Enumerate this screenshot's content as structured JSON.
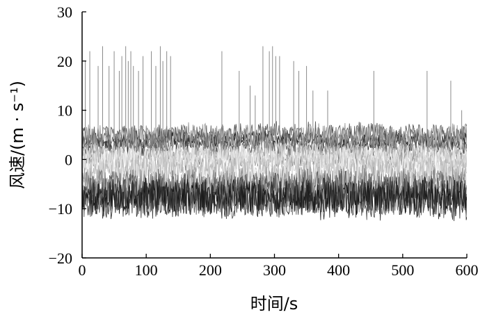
{
  "chart_data": {
    "type": "line",
    "title": "",
    "xlabel": "时间/s",
    "ylabel": "风速/(m · s⁻¹)",
    "xlim": [
      0,
      600
    ],
    "ylim": [
      -20,
      30
    ],
    "x_ticks": [
      "0",
      "100",
      "200",
      "300",
      "400",
      "500",
      "600"
    ],
    "y_ticks": [
      "30",
      "20",
      "10",
      "0",
      "−10",
      "−20"
    ],
    "grid": false,
    "legend": "none",
    "series_colors": [
      "#1a1a1a",
      "#3a3a3a",
      "#5a5a5a",
      "#7a7a7a",
      "#9a9a9a",
      "#b8b8b8",
      "#d2d2d2",
      "#e8e8e8"
    ],
    "series": [
      {
        "color_index": 0,
        "mean": 4.0,
        "noise": 1.5,
        "seed": 11
      },
      {
        "color_index": 1,
        "mean": 3.2,
        "noise": 2.0,
        "seed": 17
      },
      {
        "color_index": 2,
        "mean": 5.0,
        "noise": 2.2,
        "seed": 23
      },
      {
        "color_index": 3,
        "mean": 1.5,
        "noise": 3.0,
        "seed": 29
      },
      {
        "color_index": 4,
        "mean": 4.5,
        "noise": 2.5,
        "seed": 31
      },
      {
        "color_index": 5,
        "mean": 0.5,
        "noise": 2.5,
        "seed": 37
      },
      {
        "color_index": 6,
        "mean": 1.0,
        "noise": 2.0,
        "seed": 41
      },
      {
        "color_index": 7,
        "mean": 0.0,
        "noise": 2.2,
        "seed": 43
      },
      {
        "color_index": 6,
        "mean": -1.5,
        "noise": 2.5,
        "seed": 47
      },
      {
        "color_index": 5,
        "mean": -2.5,
        "noise": 3.0,
        "seed": 53
      },
      {
        "color_index": 4,
        "mean": -5.5,
        "noise": 4.0,
        "seed": 59
      },
      {
        "color_index": 3,
        "mean": -6.5,
        "noise": 4.5,
        "seed": 61
      },
      {
        "color_index": 2,
        "mean": -7.0,
        "noise": 4.5,
        "seed": 67
      },
      {
        "color_index": 1,
        "mean": -8.0,
        "noise": 4.0,
        "seed": 71
      },
      {
        "color_index": 0,
        "mean": -7.5,
        "noise": 3.5,
        "seed": 73
      }
    ],
    "spikes": [
      {
        "x": 5,
        "y": 20
      },
      {
        "x": 12,
        "y": 22
      },
      {
        "x": 25,
        "y": 19
      },
      {
        "x": 32,
        "y": 23
      },
      {
        "x": 42,
        "y": 19
      },
      {
        "x": 50,
        "y": 22
      },
      {
        "x": 58,
        "y": 18
      },
      {
        "x": 62,
        "y": 21
      },
      {
        "x": 68,
        "y": 23
      },
      {
        "x": 72,
        "y": 20
      },
      {
        "x": 76,
        "y": 22
      },
      {
        "x": 80,
        "y": 19
      },
      {
        "x": 88,
        "y": 18
      },
      {
        "x": 95,
        "y": 21
      },
      {
        "x": 108,
        "y": 22
      },
      {
        "x": 115,
        "y": 19
      },
      {
        "x": 122,
        "y": 23
      },
      {
        "x": 126,
        "y": 20
      },
      {
        "x": 132,
        "y": 22
      },
      {
        "x": 138,
        "y": 21
      },
      {
        "x": 218,
        "y": 22
      },
      {
        "x": 245,
        "y": 18
      },
      {
        "x": 262,
        "y": 15
      },
      {
        "x": 270,
        "y": 13
      },
      {
        "x": 282,
        "y": 23
      },
      {
        "x": 292,
        "y": 22
      },
      {
        "x": 297,
        "y": 23
      },
      {
        "x": 302,
        "y": 21
      },
      {
        "x": 308,
        "y": 21
      },
      {
        "x": 330,
        "y": 20
      },
      {
        "x": 338,
        "y": 18
      },
      {
        "x": 350,
        "y": 19
      },
      {
        "x": 360,
        "y": 14
      },
      {
        "x": 383,
        "y": 14
      },
      {
        "x": 455,
        "y": 18
      },
      {
        "x": 538,
        "y": 18
      },
      {
        "x": 575,
        "y": 16
      },
      {
        "x": 592,
        "y": 10
      }
    ]
  }
}
